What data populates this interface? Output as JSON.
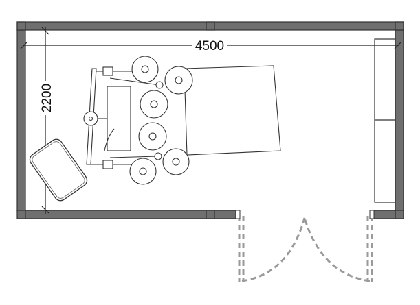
{
  "plan": {
    "width_label": "4500",
    "depth_label": "2200",
    "colors": {
      "wall": "#6f6f6f",
      "outline": "#333333",
      "door": "#9a9a9a",
      "dim_line": "#222222",
      "background": "#ffffff"
    }
  }
}
